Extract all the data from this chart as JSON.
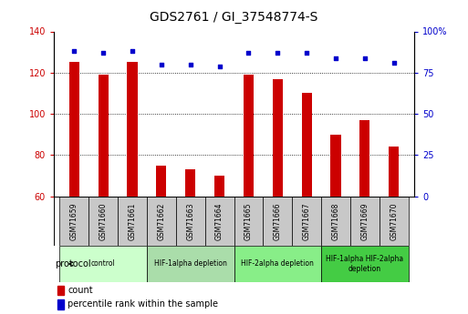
{
  "title": "GDS2761 / GI_37548774-S",
  "samples": [
    "GSM71659",
    "GSM71660",
    "GSM71661",
    "GSM71662",
    "GSM71663",
    "GSM71664",
    "GSM71665",
    "GSM71666",
    "GSM71667",
    "GSM71668",
    "GSM71669",
    "GSM71670"
  ],
  "counts": [
    125,
    119,
    125,
    75,
    73,
    70,
    119,
    117,
    110,
    90,
    97,
    84
  ],
  "percentile_ranks": [
    88,
    87,
    88,
    80,
    80,
    79,
    87,
    87,
    87,
    84,
    84,
    81
  ],
  "ylim_left": [
    60,
    140
  ],
  "ylim_right": [
    0,
    100
  ],
  "yticks_left": [
    60,
    80,
    100,
    120,
    140
  ],
  "yticks_right": [
    0,
    25,
    50,
    75,
    100
  ],
  "bar_color": "#cc0000",
  "dot_color": "#0000cc",
  "protocol_groups": [
    {
      "label": "control",
      "start": 0,
      "end": 2,
      "color": "#ccffcc"
    },
    {
      "label": "HIF-1alpha depletion",
      "start": 3,
      "end": 5,
      "color": "#aaddaa"
    },
    {
      "label": "HIF-2alpha depletion",
      "start": 6,
      "end": 8,
      "color": "#88ee88"
    },
    {
      "label": "HIF-1alpha HIF-2alpha\ndepletion",
      "start": 9,
      "end": 11,
      "color": "#44cc44"
    }
  ],
  "legend_count_color": "#cc0000",
  "legend_pct_color": "#0000cc",
  "ticklabel_bg": "#c8c8c8"
}
